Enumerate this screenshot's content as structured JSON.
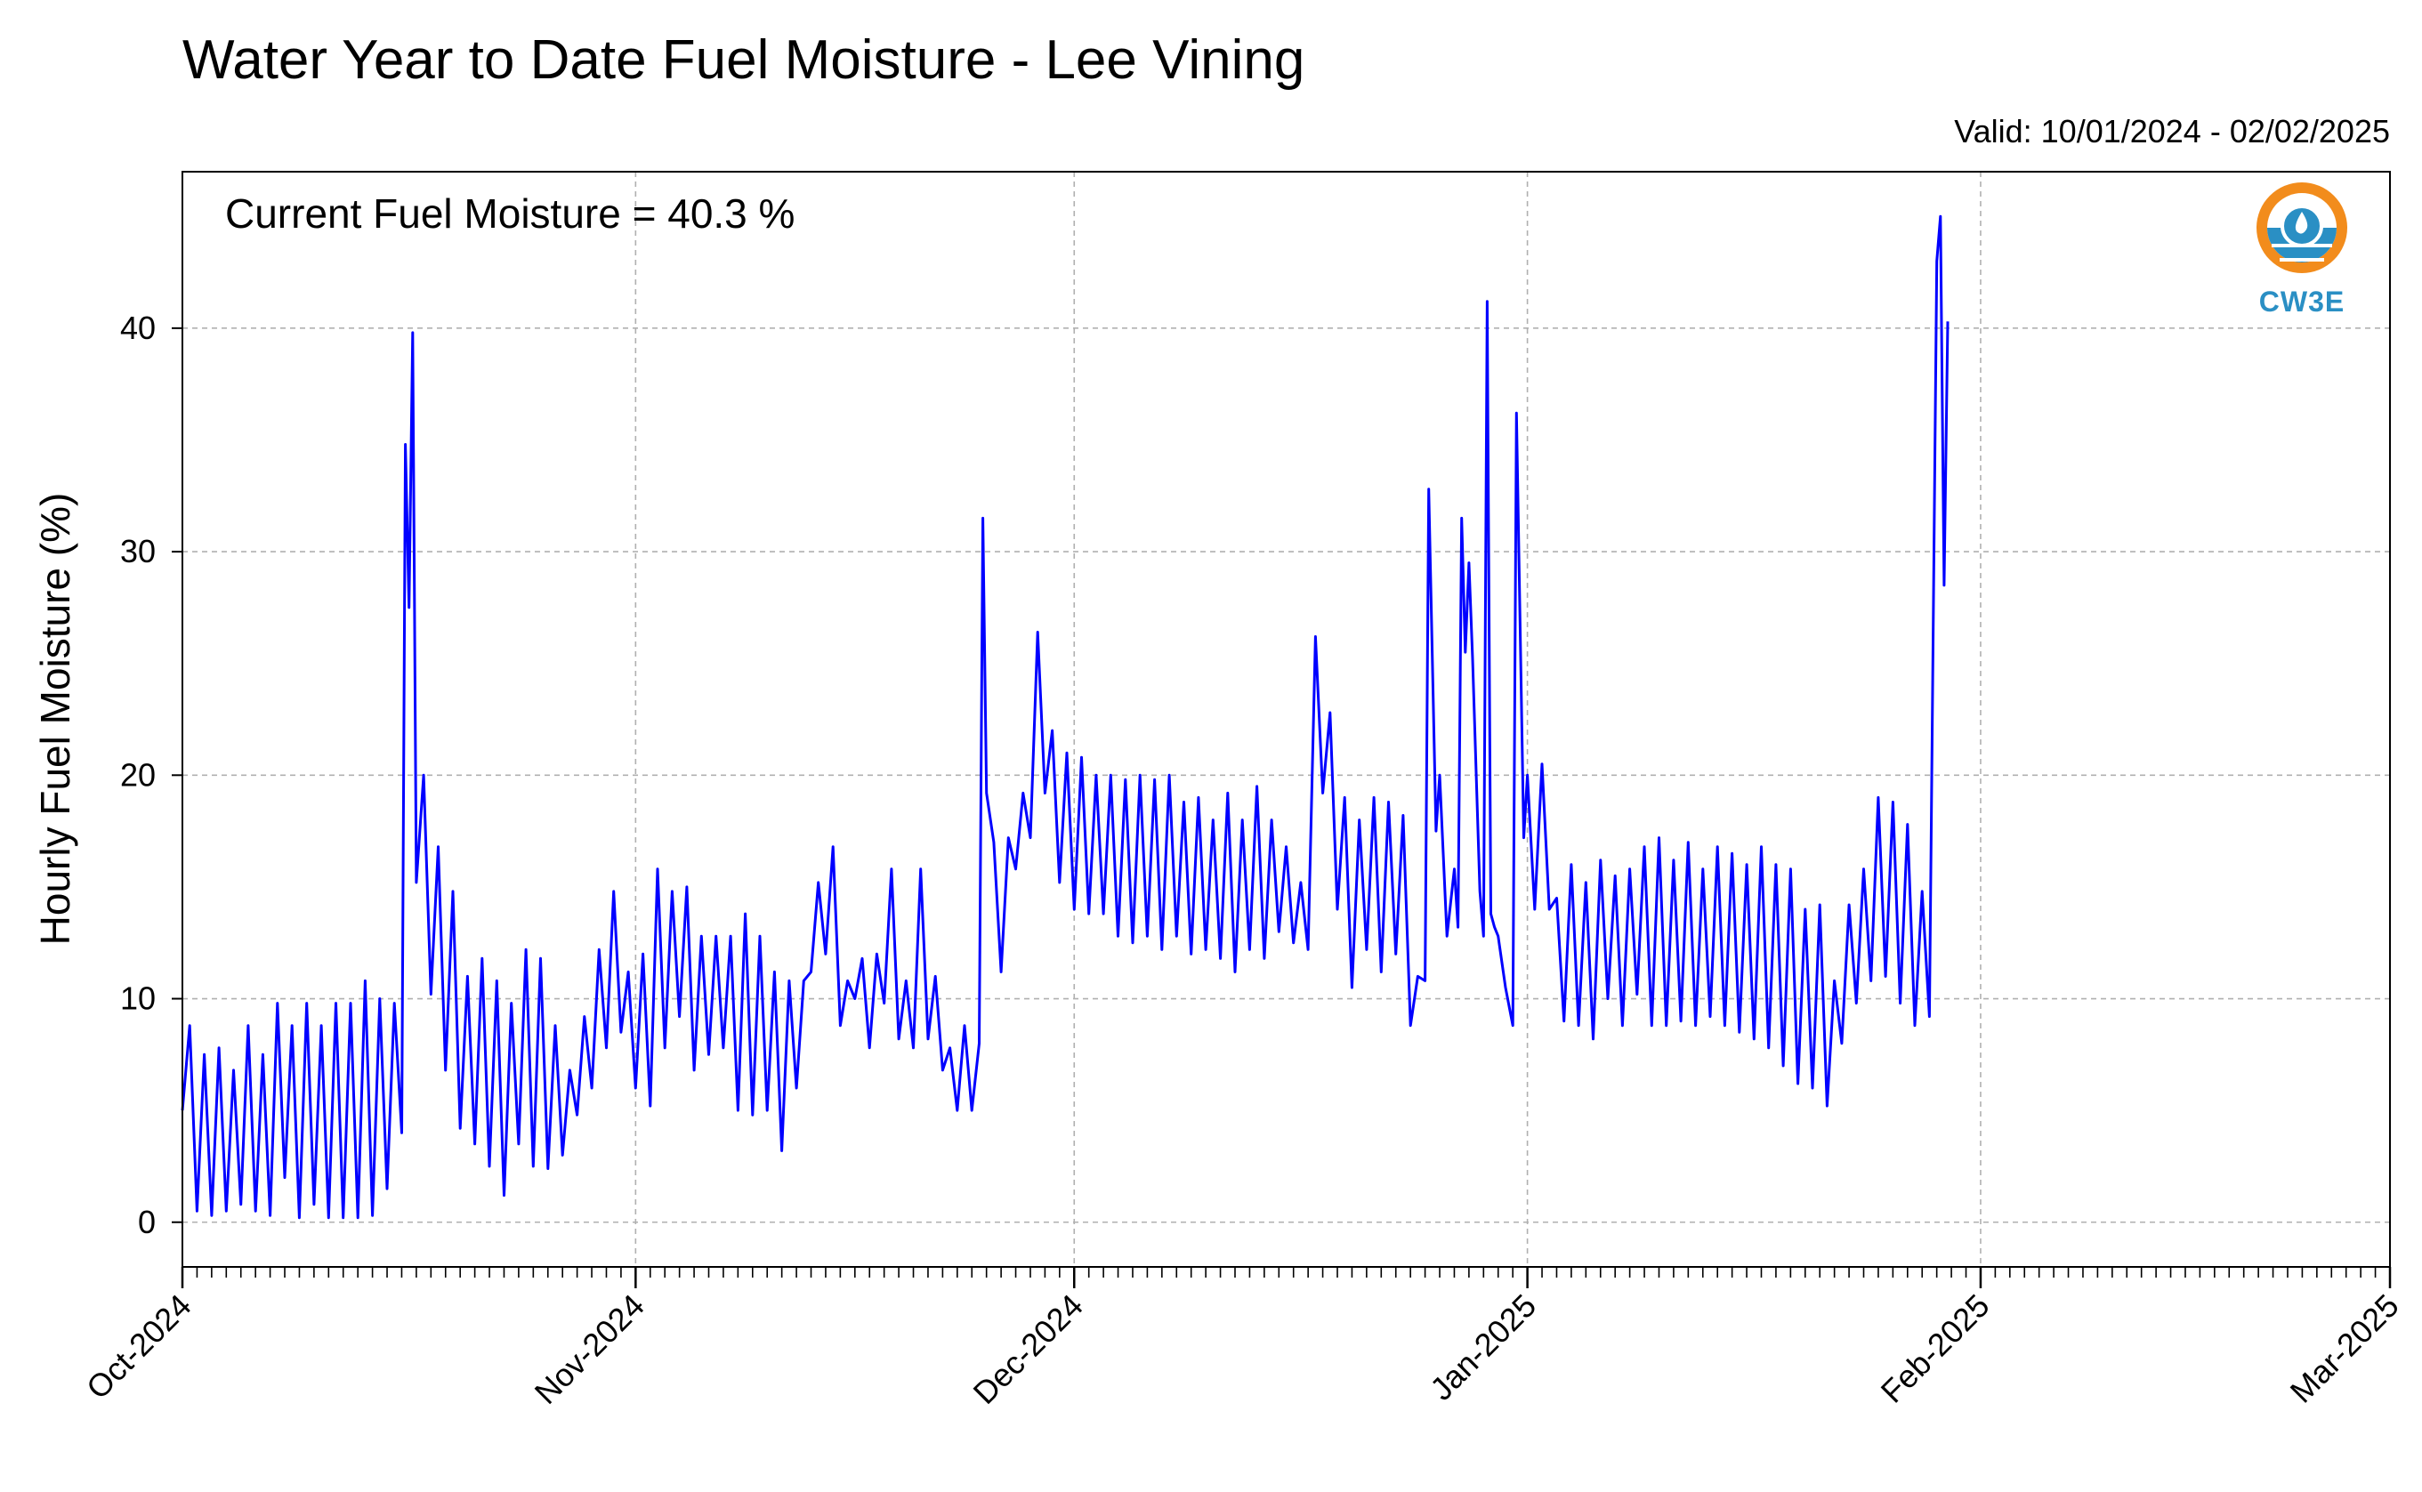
{
  "chart_data": {
    "type": "line",
    "title": "Water Year to Date Fuel Moisture - Lee Vining",
    "subtitle": "Valid: 10/01/2024 - 02/02/2025",
    "annotation": "Current Fuel Moisture = 40.3 %",
    "logo_text": "CW3E",
    "ylabel": "Hourly Fuel Moisture (%)",
    "xlabel": "",
    "xlim": [
      "2024-10-01",
      "2025-03-01"
    ],
    "ylim": [
      -2,
      47
    ],
    "yticks": [
      0,
      10,
      20,
      30,
      40
    ],
    "ytick_labels": [
      "0",
      "10",
      "20",
      "30",
      "40"
    ],
    "xticks": [
      "2024-10-01",
      "2024-11-01",
      "2024-12-01",
      "2025-01-01",
      "2025-02-01",
      "2025-03-01"
    ],
    "xtick_labels": [
      "Oct-2024",
      "Nov-2024",
      "Dec-2024",
      "Jan-2025",
      "Feb-2025",
      "Mar-2025"
    ],
    "grid": true,
    "colors": {
      "line": "#0000ff",
      "grid": "#b0b0b0",
      "logo_orange": "#f28c1c",
      "logo_blue": "#2a8fc4"
    },
    "series": [
      {
        "values": [
          [
            "2024-10-01",
            5
          ],
          [
            "2024-10-01 12:00",
            8.8
          ],
          [
            "2024-10-02",
            0.5
          ],
          [
            "2024-10-02 12:00",
            7.5
          ],
          [
            "2024-10-03",
            0.3
          ],
          [
            "2024-10-03 12:00",
            7.8
          ],
          [
            "2024-10-04",
            0.5
          ],
          [
            "2024-10-04 12:00",
            6.8
          ],
          [
            "2024-10-05",
            0.8
          ],
          [
            "2024-10-05 12:00",
            8.8
          ],
          [
            "2024-10-06",
            0.5
          ],
          [
            "2024-10-06 12:00",
            7.5
          ],
          [
            "2024-10-07",
            0.3
          ],
          [
            "2024-10-07 12:00",
            9.8
          ],
          [
            "2024-10-08",
            2
          ],
          [
            "2024-10-08 12:00",
            8.8
          ],
          [
            "2024-10-09",
            0.2
          ],
          [
            "2024-10-09 12:00",
            9.8
          ],
          [
            "2024-10-10",
            0.8
          ],
          [
            "2024-10-10 12:00",
            8.8
          ],
          [
            "2024-10-11",
            0.2
          ],
          [
            "2024-10-11 12:00",
            9.8
          ],
          [
            "2024-10-12",
            0.2
          ],
          [
            "2024-10-12 12:00",
            9.8
          ],
          [
            "2024-10-13",
            0.2
          ],
          [
            "2024-10-13 12:00",
            10.8
          ],
          [
            "2024-10-14",
            0.3
          ],
          [
            "2024-10-14 12:00",
            10.0
          ],
          [
            "2024-10-15",
            1.5
          ],
          [
            "2024-10-15 12:00",
            9.8
          ],
          [
            "2024-10-16",
            4.0
          ],
          [
            "2024-10-16 06:00",
            34.8
          ],
          [
            "2024-10-16 12:00",
            27.5
          ],
          [
            "2024-10-16 18:00",
            39.8
          ],
          [
            "2024-10-17",
            15.2
          ],
          [
            "2024-10-17 12:00",
            20.0
          ],
          [
            "2024-10-18",
            10.2
          ],
          [
            "2024-10-18 12:00",
            16.8
          ],
          [
            "2024-10-19",
            6.8
          ],
          [
            "2024-10-19 12:00",
            14.8
          ],
          [
            "2024-10-20",
            4.2
          ],
          [
            "2024-10-20 12:00",
            11.0
          ],
          [
            "2024-10-21",
            3.5
          ],
          [
            "2024-10-21 12:00",
            11.8
          ],
          [
            "2024-10-22",
            2.5
          ],
          [
            "2024-10-22 12:00",
            10.8
          ],
          [
            "2024-10-23",
            1.2
          ],
          [
            "2024-10-23 12:00",
            9.8
          ],
          [
            "2024-10-24",
            3.5
          ],
          [
            "2024-10-24 12:00",
            12.2
          ],
          [
            "2024-10-25",
            2.5
          ],
          [
            "2024-10-25 12:00",
            11.8
          ],
          [
            "2024-10-26",
            2.4
          ],
          [
            "2024-10-26 12:00",
            8.8
          ],
          [
            "2024-10-27",
            3.0
          ],
          [
            "2024-10-27 12:00",
            6.8
          ],
          [
            "2024-10-28",
            4.8
          ],
          [
            "2024-10-28 12:00",
            9.2
          ],
          [
            "2024-10-29",
            6.0
          ],
          [
            "2024-10-29 12:00",
            12.2
          ],
          [
            "2024-10-30",
            7.8
          ],
          [
            "2024-10-30 12:00",
            14.8
          ],
          [
            "2024-10-31",
            8.5
          ],
          [
            "2024-10-31 12:00",
            11.2
          ],
          [
            "2024-11-01",
            6.0
          ],
          [
            "2024-11-01 12:00",
            12.0
          ],
          [
            "2024-11-02",
            5.2
          ],
          [
            "2024-11-02 12:00",
            15.8
          ],
          [
            "2024-11-03",
            7.8
          ],
          [
            "2024-11-03 12:00",
            14.8
          ],
          [
            "2024-11-04",
            9.2
          ],
          [
            "2024-11-04 12:00",
            15.0
          ],
          [
            "2024-11-05",
            6.8
          ],
          [
            "2024-11-05 12:00",
            12.8
          ],
          [
            "2024-11-06",
            7.5
          ],
          [
            "2024-11-06 12:00",
            12.8
          ],
          [
            "2024-11-07",
            7.8
          ],
          [
            "2024-11-07 12:00",
            12.8
          ],
          [
            "2024-11-08",
            5.0
          ],
          [
            "2024-11-08 12:00",
            13.8
          ],
          [
            "2024-11-09",
            4.8
          ],
          [
            "2024-11-09 12:00",
            12.8
          ],
          [
            "2024-11-10",
            5.0
          ],
          [
            "2024-11-10 12:00",
            11.2
          ],
          [
            "2024-11-11",
            3.2
          ],
          [
            "2024-11-11 12:00",
            10.8
          ],
          [
            "2024-11-12",
            6.0
          ],
          [
            "2024-11-12 12:00",
            10.8
          ],
          [
            "2024-11-13",
            11.2
          ],
          [
            "2024-11-13 12:00",
            15.2
          ],
          [
            "2024-11-14",
            12.0
          ],
          [
            "2024-11-14 12:00",
            16.8
          ],
          [
            "2024-11-15",
            8.8
          ],
          [
            "2024-11-15 12:00",
            10.8
          ],
          [
            "2024-11-16",
            10.0
          ],
          [
            "2024-11-16 12:00",
            11.8
          ],
          [
            "2024-11-17",
            7.8
          ],
          [
            "2024-11-17 12:00",
            12.0
          ],
          [
            "2024-11-18",
            9.8
          ],
          [
            "2024-11-18 12:00",
            15.8
          ],
          [
            "2024-11-19",
            8.2
          ],
          [
            "2024-11-19 12:00",
            10.8
          ],
          [
            "2024-11-20",
            7.8
          ],
          [
            "2024-11-20 12:00",
            15.8
          ],
          [
            "2024-11-21",
            8.2
          ],
          [
            "2024-11-21 12:00",
            11.0
          ],
          [
            "2024-11-22",
            6.8
          ],
          [
            "2024-11-22 12:00",
            7.8
          ],
          [
            "2024-11-23",
            5.0
          ],
          [
            "2024-11-23 12:00",
            8.8
          ],
          [
            "2024-11-24",
            5.0
          ],
          [
            "2024-11-24 12:00",
            8.0
          ],
          [
            "2024-11-24 18:00",
            31.5
          ],
          [
            "2024-11-25",
            19.2
          ],
          [
            "2024-11-25 12:00",
            17.0
          ],
          [
            "2024-11-26",
            11.2
          ],
          [
            "2024-11-26 12:00",
            17.2
          ],
          [
            "2024-11-27",
            15.8
          ],
          [
            "2024-11-27 12:00",
            19.2
          ],
          [
            "2024-11-28",
            17.2
          ],
          [
            "2024-11-28 12:00",
            26.4
          ],
          [
            "2024-11-29",
            19.2
          ],
          [
            "2024-11-29 12:00",
            22.0
          ],
          [
            "2024-11-30",
            15.2
          ],
          [
            "2024-11-30 12:00",
            21.0
          ],
          [
            "2024-12-01",
            14.0
          ],
          [
            "2024-12-01 12:00",
            20.8
          ],
          [
            "2024-12-02",
            13.8
          ],
          [
            "2024-12-02 12:00",
            20.0
          ],
          [
            "2024-12-03",
            13.8
          ],
          [
            "2024-12-03 12:00",
            20.0
          ],
          [
            "2024-12-04",
            12.8
          ],
          [
            "2024-12-04 12:00",
            19.8
          ],
          [
            "2024-12-05",
            12.5
          ],
          [
            "2024-12-05 12:00",
            20.0
          ],
          [
            "2024-12-06",
            12.8
          ],
          [
            "2024-12-06 12:00",
            19.8
          ],
          [
            "2024-12-07",
            12.2
          ],
          [
            "2024-12-07 12:00",
            20.0
          ],
          [
            "2024-12-08",
            12.8
          ],
          [
            "2024-12-08 12:00",
            18.8
          ],
          [
            "2024-12-09",
            12.0
          ],
          [
            "2024-12-09 12:00",
            19.0
          ],
          [
            "2024-12-10",
            12.2
          ],
          [
            "2024-12-10 12:00",
            18.0
          ],
          [
            "2024-12-11",
            11.8
          ],
          [
            "2024-12-11 12:00",
            19.2
          ],
          [
            "2024-12-12",
            11.2
          ],
          [
            "2024-12-12 12:00",
            18.0
          ],
          [
            "2024-12-13",
            12.2
          ],
          [
            "2024-12-13 12:00",
            19.5
          ],
          [
            "2024-12-14",
            11.8
          ],
          [
            "2024-12-14 12:00",
            18.0
          ],
          [
            "2024-12-15",
            13.0
          ],
          [
            "2024-12-15 12:00",
            16.8
          ],
          [
            "2024-12-16",
            12.5
          ],
          [
            "2024-12-16 12:00",
            15.2
          ],
          [
            "2024-12-17",
            12.2
          ],
          [
            "2024-12-17 12:00",
            26.2
          ],
          [
            "2024-12-18",
            19.2
          ],
          [
            "2024-12-18 12:00",
            22.8
          ],
          [
            "2024-12-19",
            14.0
          ],
          [
            "2024-12-19 12:00",
            19.0
          ],
          [
            "2024-12-20",
            10.5
          ],
          [
            "2024-12-20 12:00",
            18.0
          ],
          [
            "2024-12-21",
            12.2
          ],
          [
            "2024-12-21 12:00",
            19.0
          ],
          [
            "2024-12-22",
            11.2
          ],
          [
            "2024-12-22 12:00",
            18.8
          ],
          [
            "2024-12-23",
            12.0
          ],
          [
            "2024-12-23 12:00",
            18.2
          ],
          [
            "2024-12-24",
            8.8
          ],
          [
            "2024-12-24 12:00",
            11.0
          ],
          [
            "2024-12-25",
            10.8
          ],
          [
            "2024-12-25 06:00",
            32.8
          ],
          [
            "2024-12-25 18:00",
            17.5
          ],
          [
            "2024-12-26",
            20.0
          ],
          [
            "2024-12-26 12:00",
            12.8
          ],
          [
            "2024-12-27",
            15.8
          ],
          [
            "2024-12-27 06:00",
            13.2
          ],
          [
            "2024-12-27 12:00",
            31.5
          ],
          [
            "2024-12-27 18:00",
            25.5
          ],
          [
            "2024-12-28",
            29.5
          ],
          [
            "2024-12-28 06:00",
            25.2
          ],
          [
            "2024-12-28 18:00",
            14.8
          ],
          [
            "2024-12-29",
            12.8
          ],
          [
            "2024-12-29 06:00",
            41.2
          ],
          [
            "2024-12-29 12:00",
            13.8
          ],
          [
            "2024-12-29 18:00",
            13.2
          ],
          [
            "2024-12-30",
            12.8
          ],
          [
            "2024-12-30 12:00",
            10.5
          ],
          [
            "2024-12-31",
            8.8
          ],
          [
            "2024-12-31 06:00",
            36.2
          ],
          [
            "2024-12-31 18:00",
            17.2
          ],
          [
            "2025-01-01",
            20.0
          ],
          [
            "2025-01-01 12:00",
            14.0
          ],
          [
            "2025-01-02",
            20.5
          ],
          [
            "2025-01-02 12:00",
            14.0
          ],
          [
            "2025-01-03",
            14.5
          ],
          [
            "2025-01-03 12:00",
            9.0
          ],
          [
            "2025-01-04",
            16.0
          ],
          [
            "2025-01-04 12:00",
            8.8
          ],
          [
            "2025-01-05",
            15.2
          ],
          [
            "2025-01-05 12:00",
            8.2
          ],
          [
            "2025-01-06",
            16.2
          ],
          [
            "2025-01-06 12:00",
            10.0
          ],
          [
            "2025-01-07",
            15.5
          ],
          [
            "2025-01-07 12:00",
            8.8
          ],
          [
            "2025-01-08",
            15.8
          ],
          [
            "2025-01-08 12:00",
            10.2
          ],
          [
            "2025-01-09",
            16.8
          ],
          [
            "2025-01-09 12:00",
            8.8
          ],
          [
            "2025-01-10",
            17.2
          ],
          [
            "2025-01-10 12:00",
            8.8
          ],
          [
            "2025-01-11",
            16.2
          ],
          [
            "2025-01-11 12:00",
            9.0
          ],
          [
            "2025-01-12",
            17.0
          ],
          [
            "2025-01-12 12:00",
            8.8
          ],
          [
            "2025-01-13",
            15.8
          ],
          [
            "2025-01-13 12:00",
            9.2
          ],
          [
            "2025-01-14",
            16.8
          ],
          [
            "2025-01-14 12:00",
            8.8
          ],
          [
            "2025-01-15",
            16.5
          ],
          [
            "2025-01-15 12:00",
            8.5
          ],
          [
            "2025-01-16",
            16.0
          ],
          [
            "2025-01-16 12:00",
            8.2
          ],
          [
            "2025-01-17",
            16.8
          ],
          [
            "2025-01-17 12:00",
            7.8
          ],
          [
            "2025-01-18",
            16.0
          ],
          [
            "2025-01-18 12:00",
            7.0
          ],
          [
            "2025-01-19",
            15.8
          ],
          [
            "2025-01-19 12:00",
            6.2
          ],
          [
            "2025-01-20",
            14.0
          ],
          [
            "2025-01-20 12:00",
            6.0
          ],
          [
            "2025-01-21",
            14.2
          ],
          [
            "2025-01-21 12:00",
            5.2
          ],
          [
            "2025-01-22",
            10.8
          ],
          [
            "2025-01-22 12:00",
            8.0
          ],
          [
            "2025-01-23",
            14.2
          ],
          [
            "2025-01-23 12:00",
            9.8
          ],
          [
            "2025-01-24",
            15.8
          ],
          [
            "2025-01-24 12:00",
            10.8
          ],
          [
            "2025-01-25",
            19.0
          ],
          [
            "2025-01-25 12:00",
            11.0
          ],
          [
            "2025-01-26",
            18.8
          ],
          [
            "2025-01-26 12:00",
            9.8
          ],
          [
            "2025-01-27",
            17.8
          ],
          [
            "2025-01-27 12:00",
            8.8
          ],
          [
            "2025-01-28",
            14.8
          ],
          [
            "2025-01-28 12:00",
            9.2
          ],
          [
            "2025-01-29",
            43.0
          ],
          [
            "2025-01-29 06:00",
            45.0
          ],
          [
            "2025-01-29 12:00",
            28.5
          ],
          [
            "2025-01-29 18:00",
            40.3
          ]
        ]
      }
    ]
  }
}
